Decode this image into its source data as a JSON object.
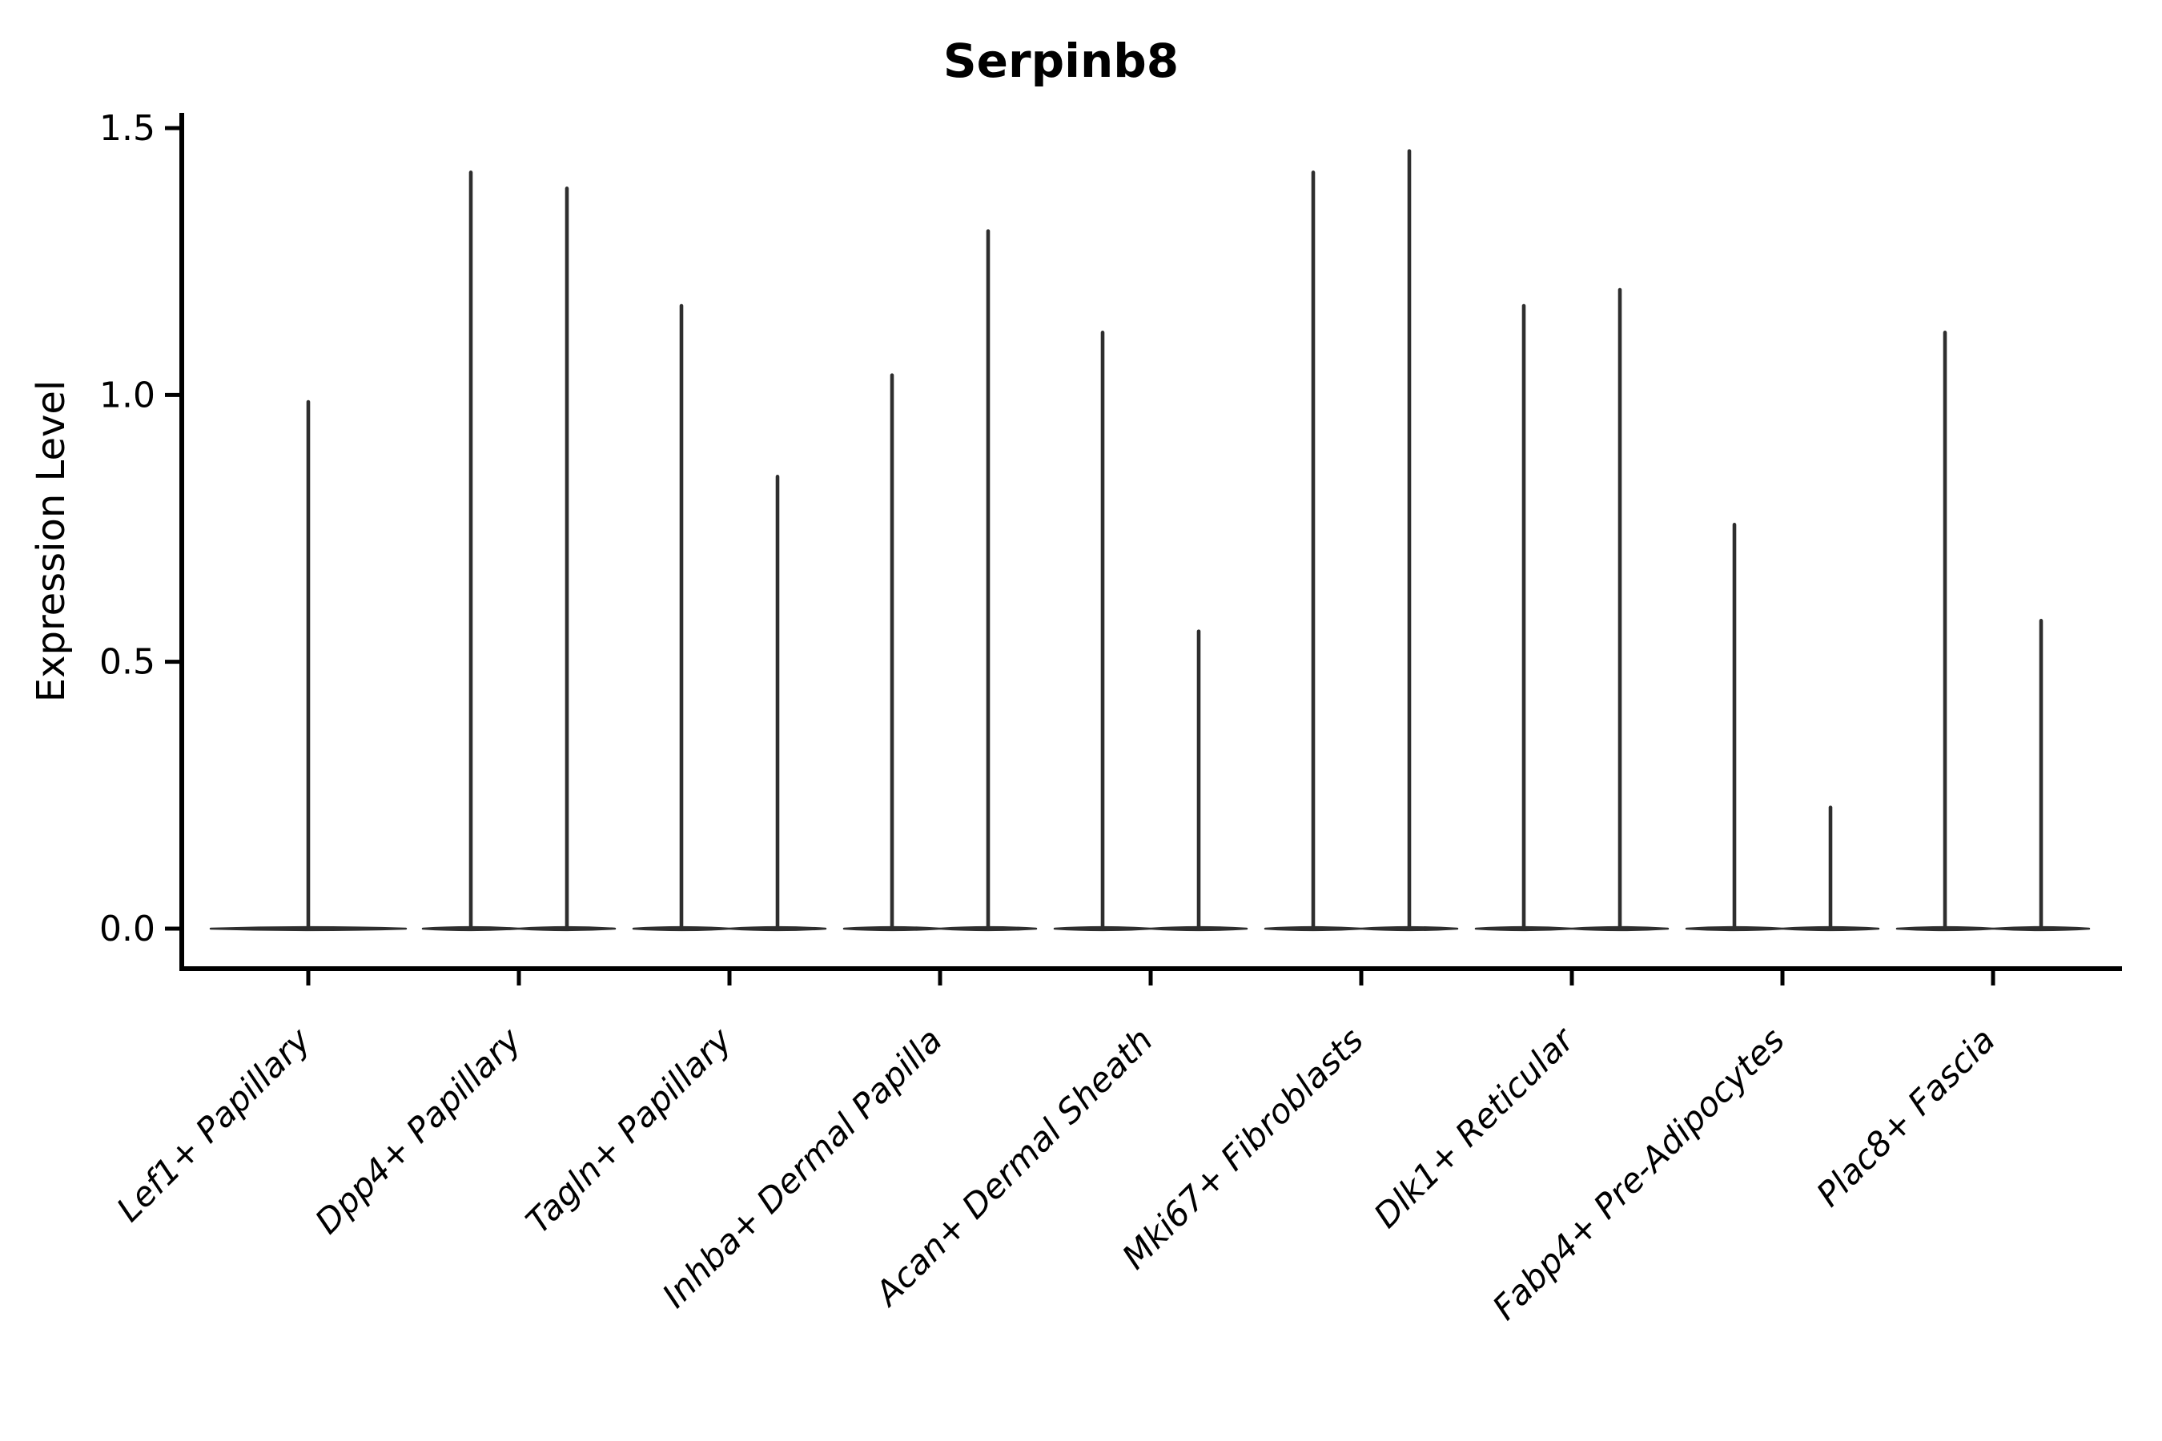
{
  "chart_data": {
    "type": "violin",
    "title": "Serpinb8",
    "ylabel": "Expression Level",
    "xlabel": "",
    "ylim": [
      0,
      1.5
    ],
    "grid": false,
    "legend_position": "none",
    "yticks": [
      {
        "value": 0.0,
        "label": "0.0"
      },
      {
        "value": 0.5,
        "label": "0.5"
      },
      {
        "value": 1.0,
        "label": "1.0"
      },
      {
        "value": 1.5,
        "label": "1.5"
      }
    ],
    "categories": [
      "Lef1+ Papillary",
      "Dpp4+ Papillary",
      "Tagln+ Papillary",
      "Inhba+ Dermal Papilla",
      "Acan+ Dermal Sheath",
      "Mki67+ Fibroblasts",
      "Dlk1+ Reticular",
      "Fabp4+ Pre-Adipocytes",
      "Plac8+ Fascia"
    ],
    "series": [
      {
        "category": "Lef1+ Papillary",
        "violin_maxima": [
          0.99
        ]
      },
      {
        "category": "Dpp4+ Papillary",
        "violin_maxima": [
          1.42,
          1.39
        ]
      },
      {
        "category": "Tagln+ Papillary",
        "violin_maxima": [
          1.17,
          0.85
        ]
      },
      {
        "category": "Inhba+ Dermal Papilla",
        "violin_maxima": [
          1.04,
          1.31
        ]
      },
      {
        "category": "Acan+ Dermal Sheath",
        "violin_maxima": [
          1.12,
          0.56
        ]
      },
      {
        "category": "Mki67+ Fibroblasts",
        "violin_maxima": [
          1.42,
          1.46
        ]
      },
      {
        "category": "Dlk1+ Reticular",
        "violin_maxima": [
          1.17,
          1.2
        ]
      },
      {
        "category": "Fabp4+ Pre-Adipocytes",
        "violin_maxima": [
          0.76,
          0.23
        ]
      },
      {
        "category": "Plac8+ Fascia",
        "violin_maxima": [
          1.12,
          0.58
        ]
      }
    ],
    "distribution_note": "each violin is a flat wide base at expression 0 with a thin spike up to its maximum",
    "style": {
      "violin_color": "#2e2e2e",
      "axis_color": "#000000",
      "text_color": "#000000",
      "background": "#ffffff"
    }
  }
}
